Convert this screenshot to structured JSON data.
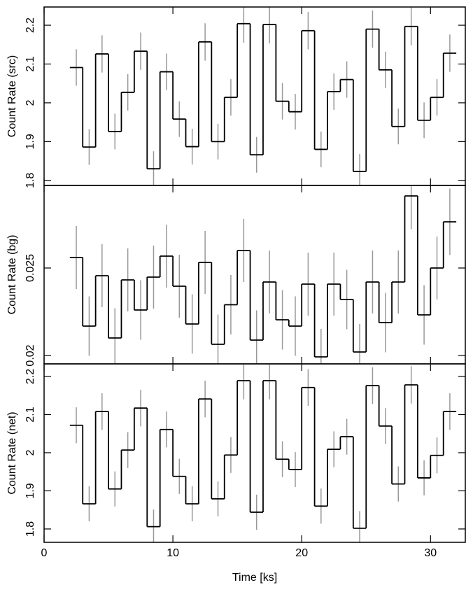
{
  "chart_data": [
    {
      "type": "step",
      "ylabel": "Count Rate (src)",
      "color": "#000000",
      "error_color": "#999999",
      "x": [
        2.5,
        3.5,
        4.5,
        5.5,
        6.5,
        7.5,
        8.5,
        9.5,
        10.5,
        11.5,
        12.5,
        13.5,
        14.5,
        15.5,
        16.5,
        17.5,
        18.5,
        19.5,
        20.5,
        21.5,
        22.5,
        23.5,
        24.5,
        25.5,
        26.5,
        27.5,
        28.5,
        29.5,
        30.5,
        31.5
      ],
      "values": [
        2.091,
        1.886,
        2.126,
        1.926,
        2.027,
        2.133,
        1.83,
        2.08,
        1.958,
        1.887,
        2.157,
        1.9,
        2.014,
        2.204,
        1.866,
        2.202,
        2.004,
        1.977,
        2.186,
        1.88,
        2.029,
        2.06,
        1.823,
        2.19,
        2.085,
        1.939,
        2.197,
        1.955,
        2.014,
        2.128
      ],
      "errors": [
        0.047,
        0.046,
        0.048,
        0.046,
        0.047,
        0.048,
        0.045,
        0.047,
        0.046,
        0.046,
        0.048,
        0.046,
        0.047,
        0.049,
        0.046,
        0.049,
        0.047,
        0.046,
        0.048,
        0.046,
        0.047,
        0.047,
        0.045,
        0.048,
        0.047,
        0.046,
        0.049,
        0.046,
        0.047,
        0.048
      ],
      "xlim": [
        0,
        32.7
      ],
      "xticks": [
        0,
        10,
        20,
        30
      ],
      "ylim": [
        1.787,
        2.247
      ],
      "yticks": [
        1.8,
        1.9,
        2,
        2.1,
        2.2
      ]
    },
    {
      "type": "step",
      "ylabel": "Count Rate (bg)",
      "color": "#000000",
      "error_color": "#999999",
      "x": [
        2.5,
        3.5,
        4.5,
        5.5,
        6.5,
        7.5,
        8.5,
        9.5,
        10.5,
        11.5,
        12.5,
        13.5,
        14.5,
        15.5,
        16.5,
        17.5,
        18.5,
        19.5,
        20.5,
        21.5,
        22.5,
        23.5,
        24.5,
        25.5,
        26.5,
        27.5,
        28.5,
        29.5,
        30.5,
        31.5
      ],
      "values": [
        0.0256,
        0.02168,
        0.02456,
        0.021,
        0.02432,
        0.0226,
        0.02448,
        0.02568,
        0.02396,
        0.0218,
        0.02532,
        0.02064,
        0.0229,
        0.026,
        0.02088,
        0.0242,
        0.02204,
        0.02168,
        0.02408,
        0.01992,
        0.02408,
        0.0232,
        0.0202,
        0.0242,
        0.02188,
        0.0242,
        0.02912,
        0.02232,
        0.025,
        0.02764
      ],
      "errors": [
        0.0018,
        0.0017,
        0.0018,
        0.0017,
        0.0018,
        0.0017,
        0.0018,
        0.0018,
        0.0018,
        0.0017,
        0.0018,
        0.0017,
        0.0017,
        0.0018,
        0.0017,
        0.0018,
        0.0017,
        0.0017,
        0.0018,
        0.0016,
        0.0018,
        0.0017,
        0.0016,
        0.0018,
        0.0017,
        0.0018,
        0.0019,
        0.0017,
        0.0018,
        0.0019
      ],
      "xlim": [
        0,
        32.7
      ],
      "xticks": [
        0,
        10,
        20,
        30
      ],
      "ylim": [
        0.01952,
        0.02972
      ],
      "yticks": [
        0.02,
        0.025
      ]
    },
    {
      "type": "step",
      "ylabel": "Count Rate (net)",
      "color": "#000000",
      "error_color": "#999999",
      "x": [
        2.5,
        3.5,
        4.5,
        5.5,
        6.5,
        7.5,
        8.5,
        9.5,
        10.5,
        11.5,
        12.5,
        13.5,
        14.5,
        15.5,
        16.5,
        17.5,
        18.5,
        19.5,
        20.5,
        21.5,
        22.5,
        23.5,
        24.5,
        25.5,
        26.5,
        27.5,
        28.5,
        29.5,
        30.5,
        31.5
      ],
      "values": [
        2.072,
        1.866,
        2.108,
        1.905,
        2.007,
        2.117,
        1.806,
        2.061,
        1.938,
        1.866,
        2.141,
        1.879,
        1.994,
        2.189,
        1.844,
        2.189,
        1.983,
        1.956,
        2.171,
        1.86,
        2.009,
        2.042,
        1.802,
        2.176,
        2.07,
        1.918,
        2.178,
        1.934,
        1.993,
        2.108
      ],
      "errors": [
        0.047,
        0.046,
        0.048,
        0.046,
        0.047,
        0.048,
        0.045,
        0.047,
        0.046,
        0.046,
        0.048,
        0.046,
        0.047,
        0.049,
        0.046,
        0.049,
        0.047,
        0.046,
        0.048,
        0.046,
        0.047,
        0.047,
        0.045,
        0.048,
        0.047,
        0.046,
        0.049,
        0.046,
        0.047,
        0.048
      ],
      "xlim": [
        0,
        32.7
      ],
      "xticks": [
        0,
        10,
        20,
        30
      ],
      "xlabel": "Time [ks]",
      "ylim": [
        1.765,
        2.233
      ],
      "yticks": [
        1.8,
        1.9,
        2,
        2.1,
        2.2
      ]
    }
  ]
}
